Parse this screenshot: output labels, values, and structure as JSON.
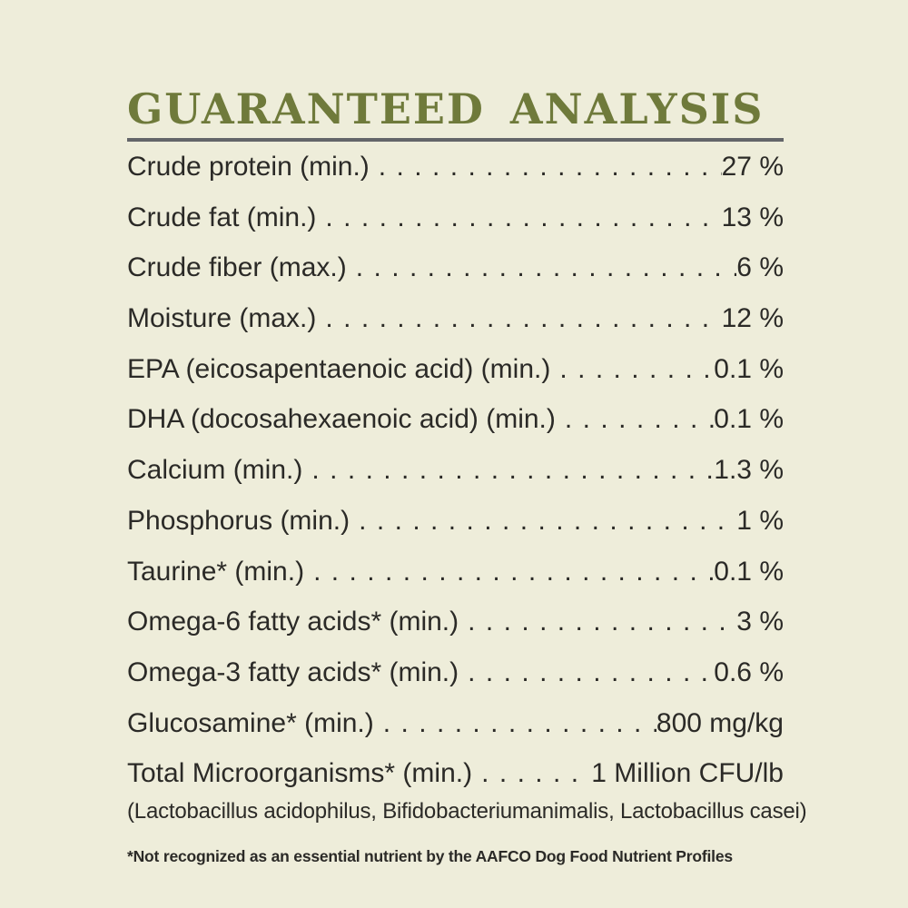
{
  "panel": {
    "title": "GUARANTEED ANALYSIS",
    "microorganisms_detail": "(Lactobacillus acidophilus, Bifidobacteriumanimalis, Lactobacillus casei)",
    "footnote": "*Not recognized as an essential nutrient by the AAFCO Dog Food Nutrient Profiles"
  },
  "analysis": {
    "leader_char": ".",
    "rows": [
      {
        "label": "Crude protein (min.)",
        "value": "27 %"
      },
      {
        "label": "Crude fat (min.)",
        "value": "13 %"
      },
      {
        "label": "Crude fiber (max.)",
        "value": "6 %"
      },
      {
        "label": "Moisture (max.)",
        "value": "12 %"
      },
      {
        "label": "EPA (eicosapentaenoic acid) (min.)",
        "value": "0.1 %"
      },
      {
        "label": "DHA (docosahexaenoic acid) (min.)",
        "value": "0.1 %"
      },
      {
        "label": "Calcium (min.)",
        "value": "1.3 %"
      },
      {
        "label": "Phosphorus (min.)",
        "value": "1 %"
      },
      {
        "label": "Taurine* (min.)",
        "value": "0.1 %"
      },
      {
        "label": "Omega-6 fatty acids* (min.)",
        "value": "3 %"
      },
      {
        "label": "Omega-3 fatty acids* (min.)",
        "value": "0.6 %"
      },
      {
        "label": "Glucosamine* (min.)",
        "value": "800 mg/kg"
      },
      {
        "label": "Total Microorganisms* (min.)",
        "value": "1 Million CFU/lb"
      }
    ]
  },
  "colors": {
    "background": "#eeedda",
    "title_green": "#6f7a3b",
    "rule_gray": "#636569",
    "ink": "#2b2a27"
  }
}
